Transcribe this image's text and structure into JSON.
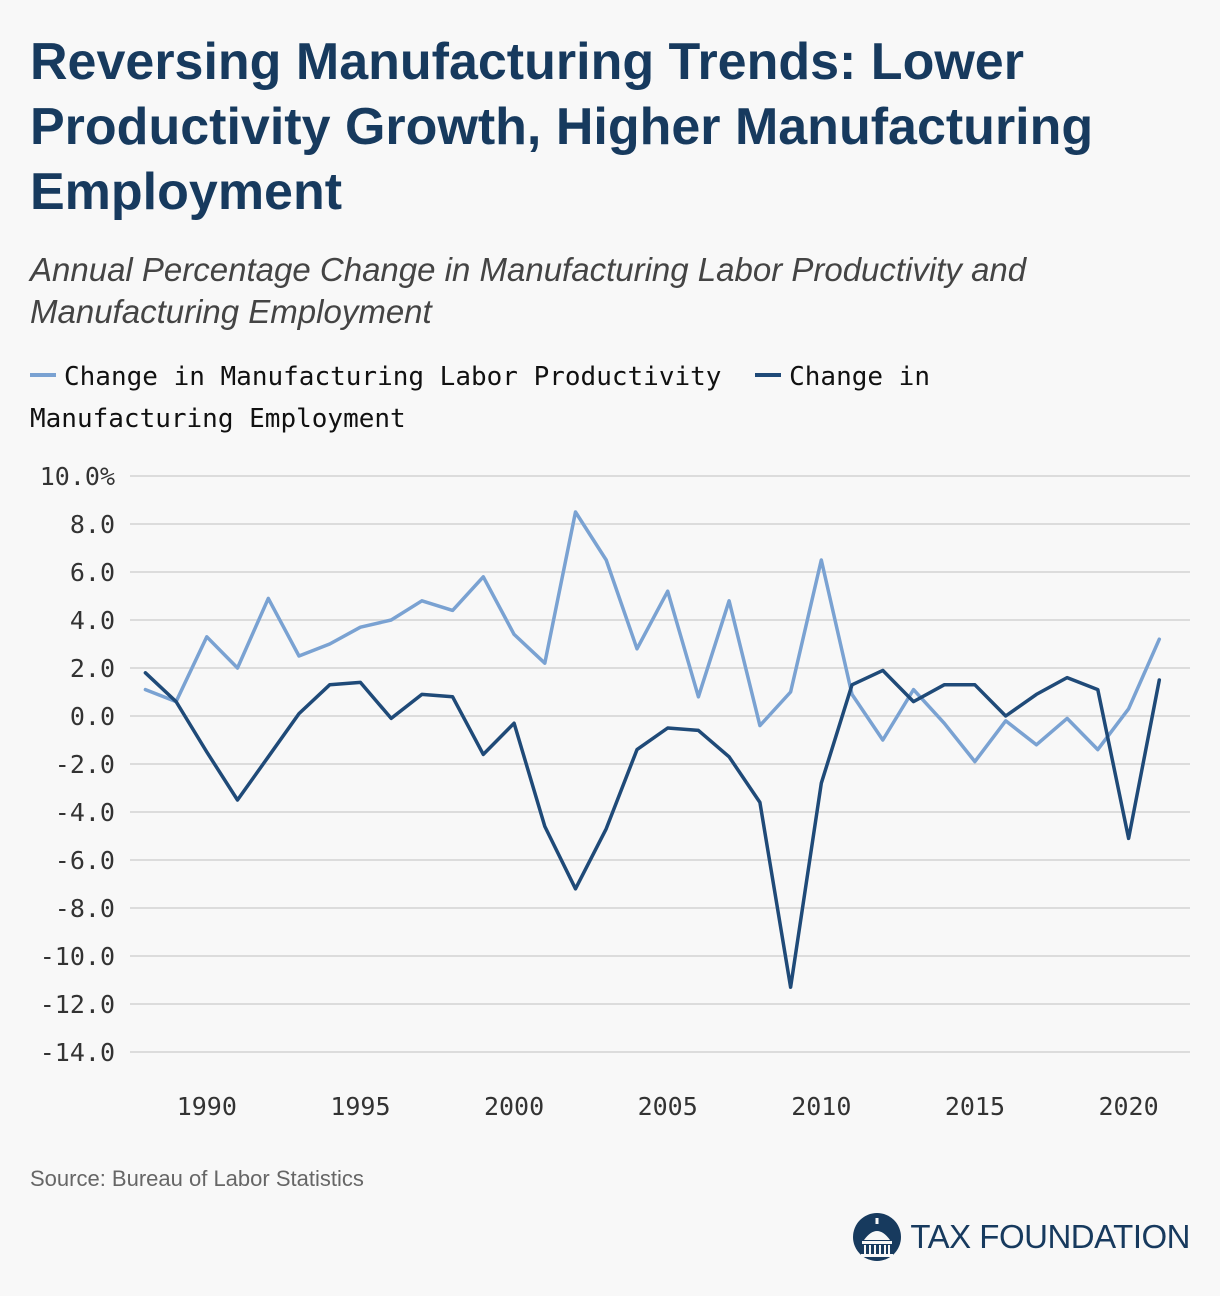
{
  "header": {
    "title": "Reversing Manufacturing Trends: Lower Productivity Growth, Higher Manufacturing Employment",
    "subtitle": "Annual Percentage Change in Manufacturing Labor Productivity and Manufacturing Employment"
  },
  "footer": {
    "source": "Source: Bureau of Labor Statistics",
    "brand": "TAX FOUNDATION"
  },
  "colors": {
    "productivity": "#7aa2d2",
    "employment": "#1f4a78",
    "grid": "#d3d3d3",
    "brand": "#173a5e"
  },
  "chart_data": {
    "type": "line",
    "grid": true,
    "legend_position": "top",
    "ylim": [
      -14,
      10
    ],
    "yticks": [
      10,
      8,
      6,
      4,
      2,
      0,
      -2,
      -4,
      -6,
      -8,
      -10,
      -12,
      -14
    ],
    "ytick_labels": [
      "10.0%",
      "8.0",
      "6.0",
      "4.0",
      "2.0",
      "0.0",
      "-2.0",
      "-4.0",
      "-6.0",
      "-8.0",
      "-10.0",
      "-12.0",
      "-14.0"
    ],
    "xlim": [
      1987.5,
      2022
    ],
    "xticks": [
      1990,
      1995,
      2000,
      2005,
      2010,
      2015,
      2020
    ],
    "x": [
      1988,
      1989,
      1990,
      1991,
      1992,
      1993,
      1994,
      1995,
      1996,
      1997,
      1998,
      1999,
      2000,
      2001,
      2002,
      2003,
      2004,
      2005,
      2006,
      2007,
      2008,
      2009,
      2010,
      2011,
      2012,
      2013,
      2014,
      2015,
      2016,
      2017,
      2018,
      2019,
      2020,
      2021
    ],
    "series": [
      {
        "name": "Change in Manufacturing Labor Productivity",
        "values": [
          1.1,
          0.6,
          3.3,
          2.0,
          4.9,
          2.5,
          3.0,
          3.7,
          4.0,
          4.8,
          4.4,
          5.8,
          3.4,
          2.2,
          8.5,
          6.5,
          2.8,
          5.2,
          0.8,
          4.8,
          -0.4,
          1.0,
          6.5,
          0.9,
          -1.0,
          1.1,
          -0.3,
          -1.9,
          -0.2,
          -1.2,
          -0.1,
          -1.4,
          0.3,
          3.2
        ]
      },
      {
        "name": "Change in Manufacturing Employment",
        "values": [
          1.8,
          0.6,
          -1.5,
          -3.5,
          -1.7,
          0.1,
          1.3,
          1.4,
          -0.1,
          0.9,
          0.8,
          -1.6,
          -0.3,
          -4.6,
          -7.2,
          -4.7,
          -1.4,
          -0.5,
          -0.6,
          -1.7,
          -3.6,
          -11.3,
          -2.8,
          1.3,
          1.9,
          0.6,
          1.3,
          1.3,
          0.0,
          0.9,
          1.6,
          1.1,
          -5.1,
          1.5
        ]
      }
    ]
  }
}
